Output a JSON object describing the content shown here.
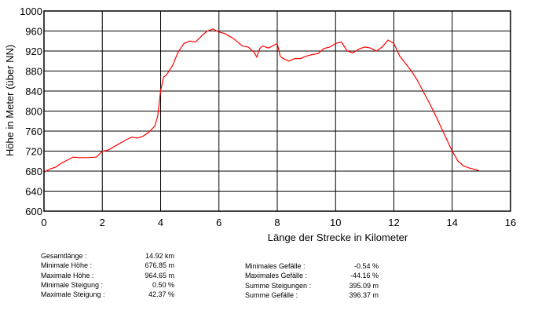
{
  "chart_data": {
    "type": "line",
    "title": "",
    "xlabel": "Länge der Strecke in Kilometer",
    "ylabel": "Höhe in Meter (über NN)",
    "xlim": [
      0,
      16
    ],
    "ylim": [
      600,
      1000
    ],
    "xticks": [
      0,
      2,
      4,
      6,
      8,
      10,
      12,
      14,
      16
    ],
    "yticks": [
      600,
      640,
      680,
      720,
      760,
      800,
      840,
      880,
      920,
      960,
      1000
    ],
    "grid": true,
    "line_color": "#ff0000",
    "series": [
      {
        "x": [
          0,
          0.2,
          0.4,
          0.6,
          0.8,
          1.0,
          1.2,
          1.5,
          1.8,
          2.0,
          2.2,
          2.5,
          2.8,
          3.0,
          3.2,
          3.4,
          3.6,
          3.8,
          3.9,
          4.0,
          4.1,
          4.2,
          4.4,
          4.6,
          4.8,
          5.0,
          5.2,
          5.4,
          5.6,
          5.8,
          6.0,
          6.2,
          6.5,
          6.8,
          7.0,
          7.2,
          7.3,
          7.4,
          7.5,
          7.7,
          7.9,
          8.0,
          8.1,
          8.2,
          8.4,
          8.6,
          8.8,
          9.0,
          9.2,
          9.4,
          9.6,
          9.8,
          10.0,
          10.2,
          10.4,
          10.6,
          10.8,
          11.0,
          11.2,
          11.4,
          11.6,
          11.8,
          12.0,
          12.2,
          12.4,
          12.6,
          12.8,
          13.0,
          13.2,
          13.4,
          13.6,
          13.8,
          14.0,
          14.2,
          14.4,
          14.6,
          14.8,
          14.92
        ],
        "y": [
          678,
          684,
          688,
          696,
          702,
          708,
          707,
          707,
          708,
          720,
          722,
          732,
          742,
          748,
          746,
          750,
          758,
          770,
          790,
          840,
          868,
          872,
          890,
          918,
          935,
          940,
          938,
          950,
          960,
          964,
          958,
          955,
          945,
          930,
          928,
          918,
          908,
          925,
          930,
          926,
          932,
          935,
          910,
          905,
          900,
          905,
          905,
          910,
          913,
          915,
          925,
          928,
          935,
          938,
          920,
          916,
          924,
          928,
          926,
          920,
          928,
          942,
          935,
          910,
          895,
          880,
          862,
          840,
          818,
          795,
          770,
          745,
          720,
          700,
          690,
          686,
          683,
          681
        ]
      }
    ]
  },
  "stats_left": [
    {
      "label": "Gesamtlänge :",
      "value": "14.92 km"
    },
    {
      "label": "Minimale Höhe :",
      "value": "676.85 m"
    },
    {
      "label": "Maximale Höhe :",
      "value": "964.65 m"
    },
    {
      "label": "Minimale Steigung :",
      "value": "0.50 %"
    },
    {
      "label": "Maximale Steigung :",
      "value": "42.37 %"
    }
  ],
  "stats_right": [
    {
      "label": "Minimales Gefälle :",
      "value": "-0.54 %"
    },
    {
      "label": "Maximales Gefälle :",
      "value": "-44.16 %"
    },
    {
      "label": "Summe Steigungen :",
      "value": "395.09 m"
    },
    {
      "label": "Summe Gefälle :",
      "value": "396.37 m"
    }
  ]
}
